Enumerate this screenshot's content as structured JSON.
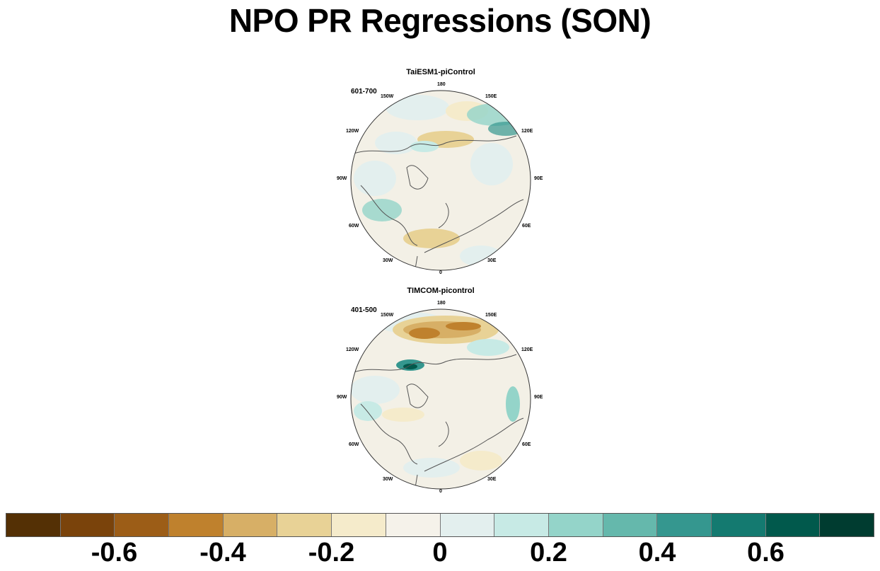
{
  "title": "NPO PR Regressions (SON)",
  "panels": [
    {
      "title": "TaiESM1-piControl",
      "years": "601-700",
      "lon_labels": {
        "180": "180",
        "150E": "150E",
        "120E": "120E",
        "90E": "90E",
        "60E": "60E",
        "30E": "30E",
        "0": "0",
        "30W": "30W",
        "60W": "60W",
        "90W": "90W",
        "120W": "120W",
        "150W": "150W"
      }
    },
    {
      "title": "TIMCOM-picontrol",
      "years": "401-500",
      "lon_labels": {
        "180": "180",
        "150E": "150E",
        "120E": "120E",
        "90E": "90E",
        "60E": "60E",
        "30E": "30E",
        "0": "0",
        "30W": "30W",
        "60W": "60W",
        "90W": "90W",
        "120W": "120W",
        "150W": "150W"
      }
    }
  ],
  "colorbar": {
    "colors": [
      "#543005",
      "#7a430b",
      "#9c5d17",
      "#bf812d",
      "#d7af66",
      "#e8d296",
      "#f5ebcb",
      "#f5f2ea",
      "#e3efee",
      "#c7eae5",
      "#94d4c9",
      "#65b8ac",
      "#35978f",
      "#147a70",
      "#01594c",
      "#003c30"
    ],
    "labels": [
      "-0.6",
      "-0.4",
      "-0.2",
      "0",
      "0.2",
      "0.4",
      "0.6"
    ]
  }
}
